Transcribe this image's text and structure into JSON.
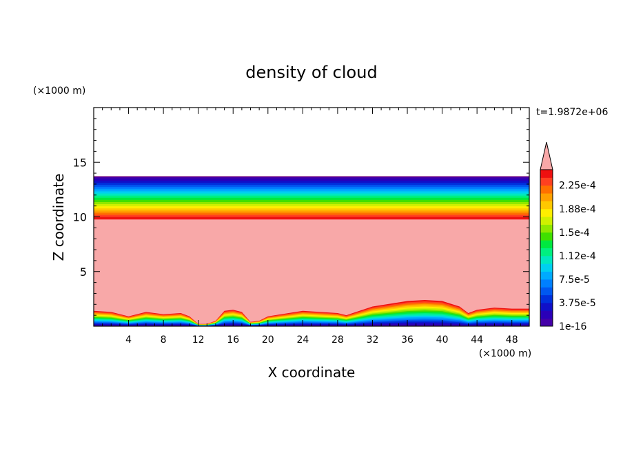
{
  "chart_data": {
    "type": "heatmap",
    "title": "density of cloud",
    "time_label": "t=1.9872e+06",
    "xlabel": "X coordinate",
    "ylabel": "Z coordinate",
    "x_unit": "(×1000 m)",
    "y_unit": "(×1000 m)",
    "xlim": [
      0,
      50
    ],
    "ylim": [
      0,
      20
    ],
    "x_ticks": [
      4,
      8,
      12,
      16,
      20,
      24,
      28,
      32,
      36,
      40,
      44,
      48
    ],
    "y_ticks": [
      5,
      10,
      15
    ],
    "colorbar": {
      "min": 1e-16,
      "max": 0.00025,
      "labels": [
        "1e-16",
        "3.75e-5",
        "7.5e-5",
        "1.12e-4",
        "1.5e-4",
        "1.88e-4",
        "2.25e-4"
      ],
      "label_values": [
        0,
        3.75e-05,
        7.5e-05,
        0.0001125,
        0.00015,
        0.0001875,
        0.000225
      ],
      "levels": 20,
      "colors": [
        "#4400a8",
        "#2a00b8",
        "#1010c8",
        "#0030dc",
        "#0058f0",
        "#0080ff",
        "#00aaff",
        "#00d0f0",
        "#00e8c0",
        "#00f080",
        "#00e840",
        "#40e000",
        "#90e800",
        "#d0f000",
        "#ffee00",
        "#ffc800",
        "#ffa000",
        "#ff7000",
        "#ff4020",
        "#ee1010"
      ],
      "overflow_color": "#f8a8a8"
    },
    "description_levels": {
      "cloud_top_base_km": 13.7,
      "cloud_layer_top_km": 9.8
    },
    "lower_boundary_profile": {
      "x": [
        0,
        2,
        4,
        6,
        8,
        10,
        11,
        12,
        13,
        14,
        15,
        16,
        17,
        18,
        19,
        20,
        24,
        28,
        29,
        32,
        36,
        38,
        40,
        42,
        43,
        44,
        46,
        48,
        50
      ],
      "z": [
        1.4,
        1.3,
        0.9,
        1.3,
        1.1,
        1.2,
        0.9,
        0.2,
        0.2,
        0.5,
        1.4,
        1.5,
        1.3,
        0.4,
        0.5,
        0.9,
        1.4,
        1.2,
        1.0,
        1.8,
        2.3,
        2.4,
        2.3,
        1.8,
        1.2,
        1.5,
        1.7,
        1.6,
        1.6
      ]
    }
  }
}
